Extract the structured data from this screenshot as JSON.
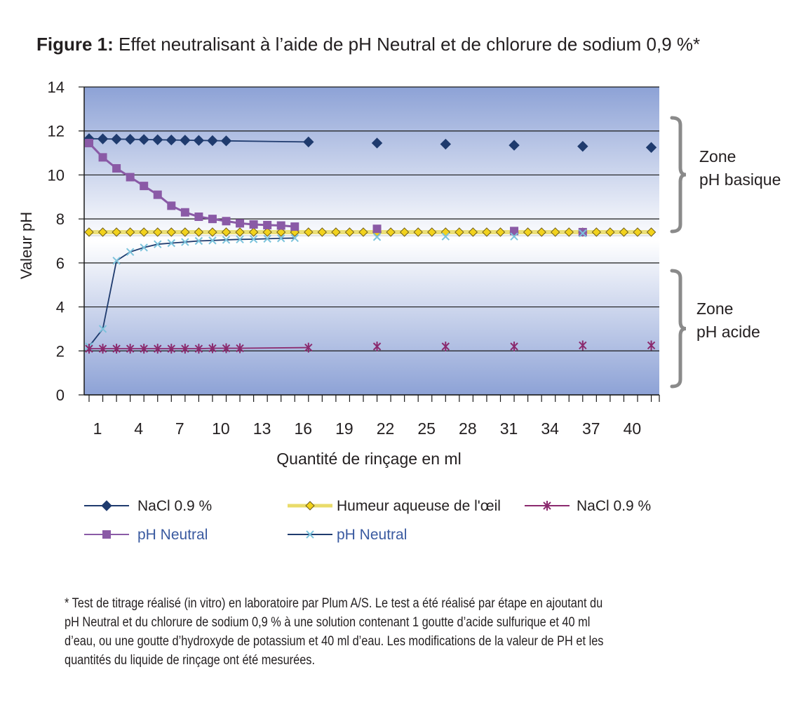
{
  "figure": {
    "label": "Figure 1:",
    "caption": "Effet neutralisant à l’aide de pH Neutral et de chlorure de sodium 0,9 %*"
  },
  "chart_data": {
    "type": "line",
    "ylabel": "Valeur pH",
    "xlabel": "Quantité de rinçage en ml",
    "ylim": [
      0,
      14
    ],
    "yticks": [
      0,
      2,
      4,
      6,
      8,
      10,
      12,
      14
    ],
    "xlim": [
      0,
      42
    ],
    "xticks": [
      1,
      4,
      7,
      10,
      13,
      16,
      19,
      22,
      25,
      28,
      31,
      34,
      37,
      40
    ],
    "grid": true,
    "legend_position": "bottom",
    "zones": [
      {
        "label_line1": "Zone",
        "label_line2": "pH basique",
        "range": [
          7.4,
          12.5
        ]
      },
      {
        "label_line1": "Zone",
        "label_line2": "pH acide",
        "range": [
          0.5,
          5.7
        ]
      }
    ],
    "series": [
      {
        "name": "NaCl 0.9 %",
        "marker": "diamond",
        "color": "#1f3b6e",
        "line": true,
        "x": [
          1,
          2,
          3,
          4,
          5,
          6,
          7,
          8,
          9,
          10,
          11,
          17,
          22,
          27,
          32,
          37,
          42
        ],
        "y": [
          11.65,
          11.64,
          11.63,
          11.62,
          11.61,
          11.6,
          11.59,
          11.58,
          11.57,
          11.56,
          11.55,
          11.5,
          11.45,
          11.4,
          11.35,
          11.3,
          11.25
        ]
      },
      {
        "name": "pH Neutral",
        "marker": "square",
        "color": "#8a5aa6",
        "line": true,
        "x": [
          1,
          2,
          3,
          4,
          5,
          6,
          7,
          8,
          9,
          10,
          11,
          12,
          13,
          14,
          15,
          16,
          22,
          32,
          37
        ],
        "y": [
          11.45,
          10.8,
          10.3,
          9.9,
          9.5,
          9.1,
          8.6,
          8.3,
          8.1,
          8.0,
          7.9,
          7.8,
          7.75,
          7.72,
          7.7,
          7.65,
          7.55,
          7.45,
          7.4
        ]
      },
      {
        "name": "Humeur aqueuse de l’œil",
        "marker": "diamond-yellow",
        "color": "#f2d21c",
        "line": true,
        "x": [
          1,
          2,
          3,
          4,
          5,
          6,
          7,
          8,
          9,
          10,
          11,
          12,
          13,
          14,
          15,
          16,
          17,
          18,
          19,
          20,
          21,
          22,
          23,
          24,
          25,
          26,
          27,
          28,
          29,
          30,
          31,
          32,
          33,
          34,
          35,
          36,
          37,
          38,
          39,
          40,
          41,
          42
        ],
        "y": [
          7.4,
          7.4,
          7.4,
          7.4,
          7.4,
          7.4,
          7.4,
          7.4,
          7.4,
          7.4,
          7.4,
          7.4,
          7.4,
          7.4,
          7.4,
          7.4,
          7.4,
          7.4,
          7.4,
          7.4,
          7.4,
          7.4,
          7.4,
          7.4,
          7.4,
          7.4,
          7.4,
          7.4,
          7.4,
          7.4,
          7.4,
          7.4,
          7.4,
          7.4,
          7.4,
          7.4,
          7.4,
          7.4,
          7.4,
          7.4,
          7.4,
          7.4
        ]
      },
      {
        "name": "pH Neutral",
        "marker": "x",
        "color": "#7cc3dc",
        "line_color": "#1f3b6e",
        "line": true,
        "x": [
          1,
          2,
          3,
          4,
          5,
          6,
          7,
          8,
          9,
          10,
          11,
          12,
          13,
          14,
          15,
          16,
          22,
          27,
          32,
          37
        ],
        "y": [
          2.2,
          3.0,
          6.1,
          6.5,
          6.7,
          6.85,
          6.9,
          6.95,
          7.0,
          7.02,
          7.05,
          7.07,
          7.08,
          7.1,
          7.12,
          7.13,
          7.18,
          7.2,
          7.2,
          7.35
        ]
      },
      {
        "name": "NaCl 0.9 %",
        "marker": "asterisk",
        "color": "#8b2a6e",
        "line": true,
        "x": [
          1,
          2,
          3,
          4,
          5,
          6,
          7,
          8,
          9,
          10,
          11,
          12,
          17,
          22,
          27,
          32,
          37,
          42
        ],
        "y": [
          2.1,
          2.1,
          2.1,
          2.1,
          2.1,
          2.1,
          2.1,
          2.1,
          2.1,
          2.12,
          2.12,
          2.12,
          2.15,
          2.2,
          2.2,
          2.2,
          2.25,
          2.25
        ]
      }
    ],
    "legend": [
      {
        "label": "NaCl 0.9 %",
        "series": 0,
        "text_color": "#231f20"
      },
      {
        "label": "Humeur aqueuse de l'œil",
        "series": 2,
        "text_color": "#231f20"
      },
      {
        "label": "NaCl 0.9 %",
        "series": 4,
        "text_color": "#231f20"
      },
      {
        "label": "pH Neutral",
        "series": 1,
        "text_color": "#3a5aa0"
      },
      {
        "label": "pH Neutral",
        "series": 3,
        "text_color": "#3a5aa0"
      }
    ]
  },
  "footnote": {
    "lines": [
      "* Test de titrage réalisé (in vitro) en laboratoire par Plum A/S. Le test a été réalisé par étape en ajoutant du",
      "pH Neutral et du chlorure de sodium 0,9 % à une solution contenant 1 goutte d’acide sulfurique et 40 ml",
      "d’eau, ou une goutte d’hydroxyde de potassium et 40 ml d’eau. Les modifications de la valeur de PH et les",
      "quantités du liquide de rinçage ont été mesurées."
    ]
  }
}
